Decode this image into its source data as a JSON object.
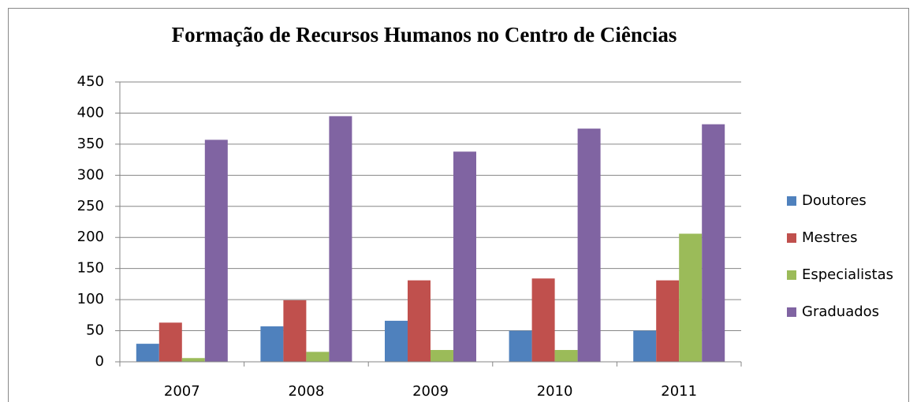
{
  "chart_data": {
    "type": "bar",
    "title": "Formação de Recursos Humanos no Centro de Ciências",
    "categories": [
      "2007",
      "2008",
      "2009",
      "2010",
      "2011"
    ],
    "series": [
      {
        "name": "Doutores",
        "color": "#4f81bd",
        "values": [
          29,
          57,
          66,
          50,
          50
        ]
      },
      {
        "name": "Mestres",
        "color": "#c0504d",
        "values": [
          63,
          99,
          131,
          134,
          131
        ]
      },
      {
        "name": "Especialistas",
        "color": "#9bbb59",
        "values": [
          6,
          16,
          19,
          19,
          206
        ]
      },
      {
        "name": "Graduados",
        "color": "#8064a2",
        "values": [
          357,
          395,
          338,
          375,
          382
        ]
      }
    ],
    "ylim": [
      0,
      450
    ],
    "yticks": [
      0,
      50,
      100,
      150,
      200,
      250,
      300,
      350,
      400,
      450
    ],
    "grid": true,
    "legend": "right"
  }
}
